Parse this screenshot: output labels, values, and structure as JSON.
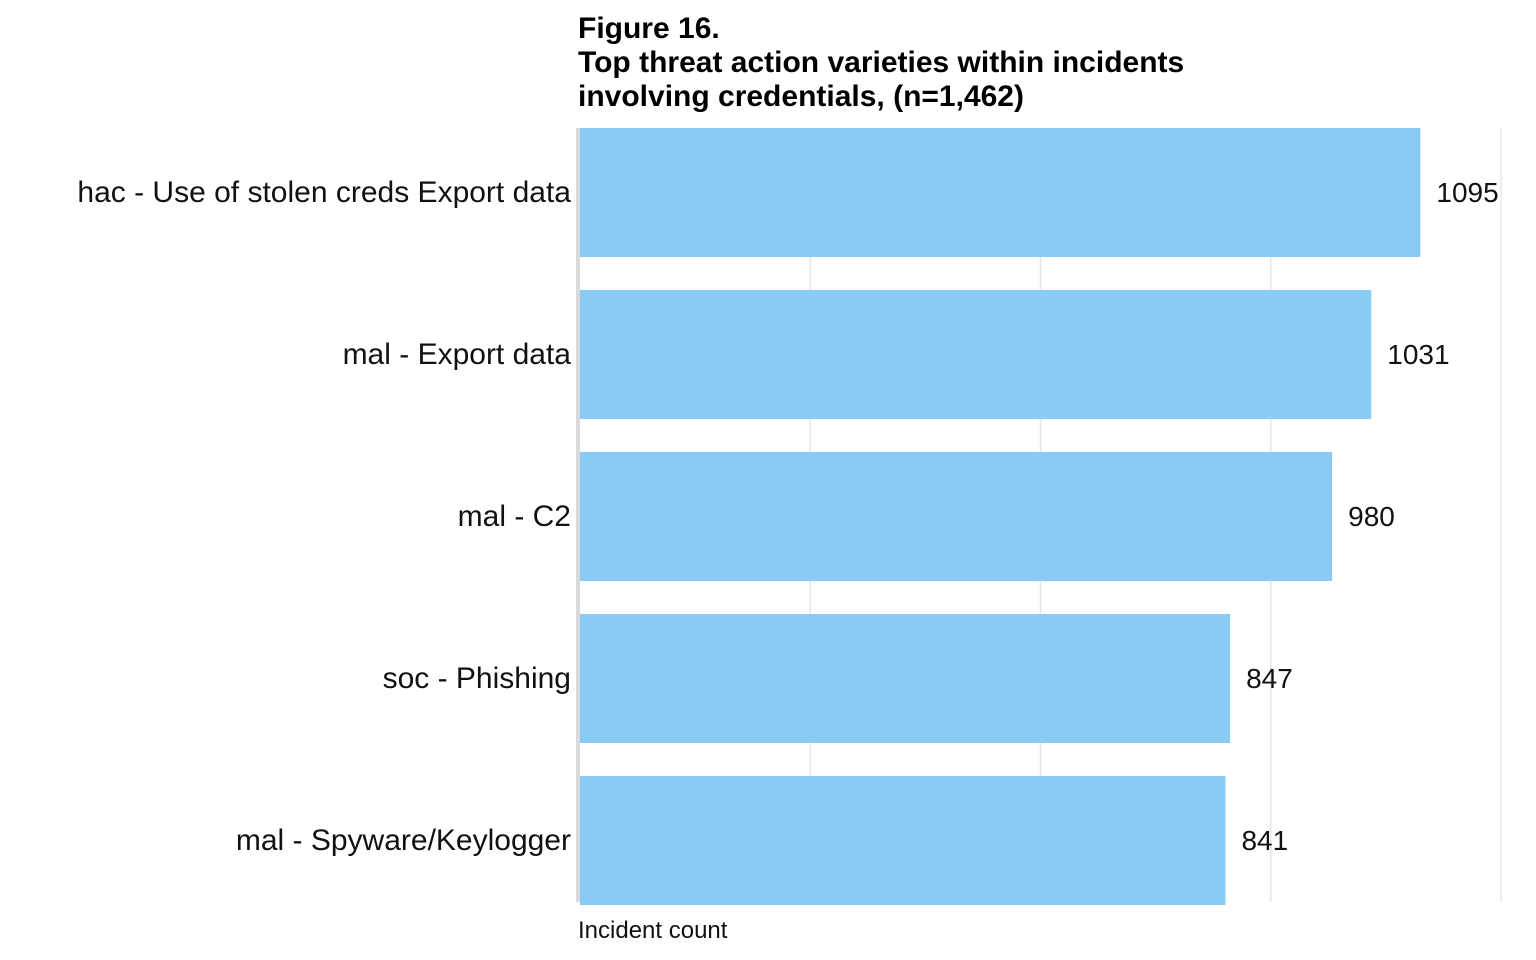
{
  "title": {
    "figure": "Figure 16.",
    "line1": "Top threat action varieties within incidents",
    "line2": "involving credentials, (n=1,462)"
  },
  "colors": {
    "bar": "#89CBF4",
    "grid": "#E6E6E6",
    "baseline": "#DADADA",
    "text": "#111111"
  },
  "chart_data": {
    "type": "bar",
    "orientation": "horizontal",
    "title": "Figure 16. Top threat action varieties within incidents involving credentials, (n=1,462)",
    "xlabel": "Incident count",
    "ylabel": "",
    "categories": [
      "hac - Use of stolen creds Export data",
      "mal - Export data",
      "mal - C2",
      "soc - Phishing",
      "mal - Spyware/Keylogger"
    ],
    "values": [
      1095,
      1031,
      980,
      847,
      841
    ],
    "xlim": [
      0,
      1200
    ],
    "gridlines": [
      300,
      600,
      900,
      1200
    ],
    "grid": true,
    "tick_labels_shown": false
  }
}
